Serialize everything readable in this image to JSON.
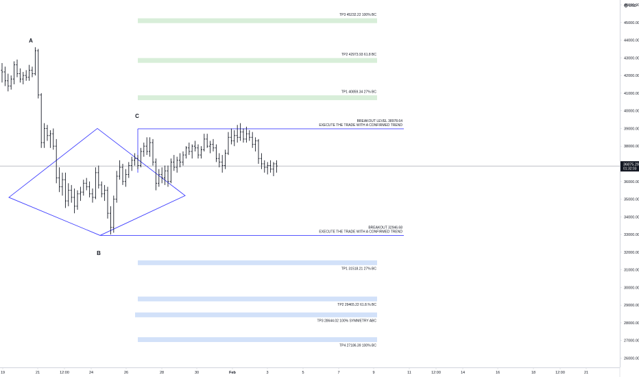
{
  "chart_data": {
    "type": "ohlc",
    "currency": "USD",
    "ylim": [
      25400,
      46400
    ],
    "y_ticks": [
      26000,
      27000,
      28000,
      29000,
      30000,
      31000,
      32000,
      33000,
      34000,
      35000,
      36000,
      37000,
      38000,
      39000,
      40000,
      41000,
      42000,
      43000,
      44000,
      45000,
      46000
    ],
    "x_ticks": [
      "19",
      "21",
      "12:00",
      "24",
      "26",
      "28",
      "30",
      "Feb",
      "3",
      "5",
      "7",
      "9",
      "11",
      "12:00",
      "14",
      "16",
      "18",
      "12:00",
      "21"
    ],
    "current_price": {
      "price": "36875.29",
      "countdown": "01:32:03",
      "value": 36875.29
    },
    "points": [
      {
        "label": "A",
        "bar": 11,
        "price": 44000
      },
      {
        "label": "B",
        "bar": 36,
        "price": 32000
      },
      {
        "label": "C",
        "bar": 49,
        "price": 39600
      }
    ],
    "zones": [
      {
        "text": "TP3  45232.22 100%  BC",
        "price": 45100,
        "color": "green"
      },
      {
        "text": "TP2  42973.93 61.8 BC",
        "price": 42850,
        "color": "green"
      },
      {
        "text": "TP1  40859.34  27% BC",
        "price": 40740,
        "color": "green"
      },
      {
        "text": "TP1  31518.21 27% BC",
        "price": 31400,
        "color": "blue"
      },
      {
        "text": "TP2  29465.22 61.8.% BC",
        "price": 29350,
        "color": "blue"
      },
      {
        "text": "TP3  28644.02 100% SYMMETRY ABC",
        "price": 28450,
        "color": "blue"
      },
      {
        "text": "TP4  27186.39 100% BC",
        "price": 27050,
        "color": "blue"
      }
    ],
    "breakout_lines": [
      {
        "line1": "BREAKOUT LEVEL  38978.64",
        "line2": "EXECUTE THE TRADE WITH A CONFIRMED TREND",
        "value": 38978.64
      },
      {
        "line1": "BREAKOUT  32946.68",
        "line2": "EXECUTE THE TRADE WITH A CONFIRMED TREND",
        "value": 32946.68
      }
    ],
    "bars": [
      [
        42300,
        42700,
        41600,
        42200
      ],
      [
        42200,
        42500,
        41400,
        41700
      ],
      [
        41700,
        42100,
        41100,
        41400
      ],
      [
        41400,
        42000,
        41200,
        41800
      ],
      [
        41800,
        42800,
        41500,
        42600
      ],
      [
        42600,
        42900,
        41900,
        42100
      ],
      [
        42100,
        42400,
        41600,
        41800
      ],
      [
        41800,
        42200,
        41500,
        42000
      ],
      [
        42000,
        42300,
        41700,
        41900
      ],
      [
        41900,
        42600,
        41700,
        42300
      ],
      [
        42300,
        42500,
        41900,
        42100
      ],
      [
        42100,
        43600,
        42000,
        43400
      ],
      [
        43400,
        43500,
        40700,
        40900
      ],
      [
        40900,
        41000,
        37900,
        38200
      ],
      [
        38200,
        39300,
        37900,
        39000
      ],
      [
        39000,
        39200,
        38300,
        38600
      ],
      [
        38600,
        38900,
        37900,
        38700
      ],
      [
        38700,
        39000,
        37800,
        38000
      ],
      [
        38000,
        38400,
        35900,
        36200
      ],
      [
        36200,
        36800,
        35400,
        35700
      ],
      [
        35700,
        36500,
        35200,
        36100
      ],
      [
        36100,
        36500,
        34500,
        34900
      ],
      [
        34900,
        35900,
        34600,
        35500
      ],
      [
        35500,
        35800,
        34800,
        35100
      ],
      [
        35100,
        35600,
        34200,
        34600
      ],
      [
        34600,
        35500,
        34400,
        35300
      ],
      [
        35300,
        35700,
        34900,
        35400
      ],
      [
        35400,
        36100,
        35200,
        35900
      ],
      [
        35900,
        36200,
        35500,
        35700
      ],
      [
        35700,
        36000,
        35100,
        35300
      ],
      [
        35300,
        35600,
        34800,
        35100
      ],
      [
        35100,
        36800,
        35000,
        36500
      ],
      [
        36500,
        36900,
        35600,
        35800
      ],
      [
        35800,
        36000,
        35100,
        35300
      ],
      [
        35300,
        35800,
        34900,
        35500
      ],
      [
        35500,
        35700,
        33900,
        34200
      ],
      [
        34200,
        34600,
        33000,
        33400
      ],
      [
        33400,
        35200,
        33100,
        35000
      ],
      [
        35000,
        36600,
        34800,
        36300
      ],
      [
        36300,
        37200,
        36100,
        36800
      ],
      [
        36800,
        37000,
        35800,
        36000
      ],
      [
        36000,
        36700,
        35700,
        36400
      ],
      [
        36400,
        37100,
        36200,
        36900
      ],
      [
        36900,
        37400,
        36600,
        37200
      ],
      [
        37200,
        37600,
        36900,
        37300
      ],
      [
        37300,
        37500,
        36700,
        36900
      ],
      [
        36900,
        37900,
        36800,
        37700
      ],
      [
        37700,
        38200,
        37400,
        38000
      ],
      [
        38000,
        38500,
        37500,
        37700
      ],
      [
        37700,
        38500,
        37400,
        38200
      ],
      [
        38200,
        38400,
        36900,
        37100
      ],
      [
        37100,
        37300,
        35500,
        35900
      ],
      [
        35900,
        36700,
        35700,
        36400
      ],
      [
        36400,
        36800,
        35900,
        36200
      ],
      [
        36200,
        36900,
        35800,
        36600
      ],
      [
        36600,
        36900,
        35700,
        36000
      ],
      [
        36000,
        37300,
        35900,
        37100
      ],
      [
        37100,
        37500,
        36600,
        36800
      ],
      [
        36800,
        37400,
        36500,
        37200
      ],
      [
        37200,
        37600,
        36800,
        37100
      ],
      [
        37100,
        37700,
        36900,
        37500
      ],
      [
        37500,
        38000,
        37300,
        37900
      ],
      [
        37900,
        38200,
        37500,
        37700
      ],
      [
        37700,
        38100,
        37300,
        38000
      ],
      [
        38000,
        38300,
        37700,
        37900
      ],
      [
        37900,
        38100,
        37300,
        37500
      ],
      [
        37500,
        38000,
        37300,
        37800
      ],
      [
        37800,
        38700,
        37700,
        38400
      ],
      [
        38400,
        38700,
        37900,
        38000
      ],
      [
        38000,
        38300,
        37600,
        38100
      ],
      [
        38100,
        38400,
        37700,
        37900
      ],
      [
        37900,
        38100,
        37100,
        37300
      ],
      [
        37300,
        37600,
        36800,
        37100
      ],
      [
        37100,
        37500,
        36500,
        36900
      ],
      [
        36900,
        37800,
        36700,
        37600
      ],
      [
        37600,
        38800,
        37500,
        38500
      ],
      [
        38500,
        39000,
        38100,
        38300
      ],
      [
        38300,
        38900,
        38000,
        38600
      ],
      [
        38600,
        39200,
        38200,
        38500
      ],
      [
        38500,
        39300,
        38300,
        38800
      ],
      [
        38800,
        39000,
        38200,
        38400
      ],
      [
        38400,
        39100,
        38200,
        38700
      ],
      [
        38700,
        38900,
        38300,
        38500
      ],
      [
        38500,
        38800,
        37900,
        38100
      ],
      [
        38100,
        38500,
        37700,
        38300
      ],
      [
        38300,
        38400,
        37000,
        37300
      ],
      [
        37300,
        37600,
        36700,
        37000
      ],
      [
        37000,
        37200,
        36500,
        36800
      ],
      [
        36800,
        37100,
        36400,
        36900
      ],
      [
        36900,
        37200,
        36500,
        36700
      ],
      [
        36700,
        37100,
        36300,
        37000
      ],
      [
        37000,
        37200,
        36500,
        36875
      ]
    ]
  }
}
